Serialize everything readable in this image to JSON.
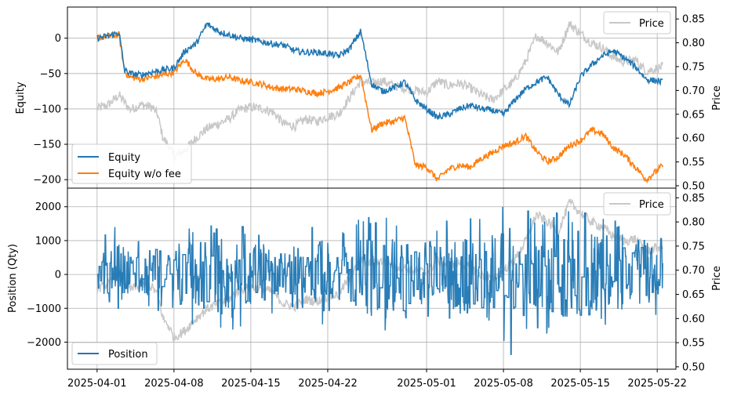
{
  "chart_data": [
    {
      "type": "line",
      "ylabel": "Equity",
      "y2label": "Price",
      "ylim": [
        -212,
        44
      ],
      "y2lim": [
        0.495,
        0.875
      ],
      "yticks": [
        0,
        -50,
        -100,
        -150,
        -200
      ],
      "yticklabels": [
        "0",
        "−50",
        "−100",
        "−150",
        "−200"
      ],
      "y2ticks": [
        0.85,
        0.8,
        0.75,
        0.7,
        0.65,
        0.6,
        0.55,
        0.5
      ],
      "y2ticklabels": [
        "0.85",
        "0.80",
        "0.75",
        "0.70",
        "0.65",
        "0.60",
        "0.55",
        "0.50"
      ],
      "grid": true,
      "legend": [
        {
          "position": "lower-left",
          "entries": [
            "Equity",
            "Equity w/o fee"
          ]
        },
        {
          "position": "upper-right",
          "entries": [
            "Price"
          ]
        }
      ],
      "colors": {
        "equity": "#1f77b4",
        "equity_no_fee": "#ff7f0e",
        "price": "#c8c8c8"
      },
      "series": [
        {
          "name": "Equity",
          "axis": "left",
          "x": [
            0,
            1,
            2,
            2.5,
            3,
            4,
            5,
            6,
            7,
            8,
            9,
            10,
            11,
            12,
            13,
            14,
            15,
            16,
            17,
            18,
            19,
            20,
            21,
            22,
            23,
            24,
            25,
            26,
            27,
            28,
            29,
            30,
            31,
            32,
            33,
            34,
            35,
            36,
            37,
            38,
            39,
            40,
            41,
            42,
            43,
            44,
            45,
            46,
            47,
            48,
            49,
            50,
            51.5
          ],
          "y": [
            0,
            3,
            8,
            -45,
            -50,
            -52,
            -48,
            -45,
            -42,
            -18,
            -8,
            20,
            10,
            5,
            0,
            -2,
            -5,
            -8,
            -10,
            -18,
            -20,
            -20,
            -22,
            -25,
            -15,
            10,
            -65,
            -75,
            -70,
            -62,
            -88,
            -100,
            -112,
            -108,
            -100,
            -95,
            -100,
            -102,
            -108,
            -88,
            -72,
            -62,
            -55,
            -80,
            -95,
            -55,
            -38,
            -25,
            -18,
            -28,
            -40,
            -58,
            -62
          ]
        },
        {
          "name": "Equity w/o fee",
          "axis": "left",
          "x": [
            0,
            1,
            2,
            2.5,
            3,
            4,
            5,
            6,
            7,
            8,
            9,
            10,
            11,
            12,
            13,
            14,
            15,
            16,
            17,
            18,
            19,
            20,
            21,
            22,
            23,
            24,
            25,
            26,
            27,
            28,
            29,
            30,
            31,
            32,
            33,
            34,
            35,
            36,
            37,
            38,
            39,
            40,
            41,
            42,
            43,
            44,
            45,
            46,
            47,
            48,
            49,
            50,
            51.5
          ],
          "y": [
            0,
            3,
            5,
            -48,
            -55,
            -58,
            -55,
            -52,
            -48,
            -30,
            -50,
            -58,
            -58,
            -55,
            -60,
            -62,
            -65,
            -70,
            -72,
            -72,
            -75,
            -78,
            -75,
            -70,
            -62,
            -52,
            -130,
            -120,
            -118,
            -112,
            -180,
            -182,
            -200,
            -185,
            -180,
            -182,
            -170,
            -162,
            -152,
            -148,
            -138,
            -160,
            -175,
            -168,
            -152,
            -145,
            -130,
            -135,
            -155,
            -165,
            -182,
            -200,
            -180
          ]
        },
        {
          "name": "Price",
          "axis": "right",
          "x": [
            0,
            1,
            2,
            3,
            4,
            5,
            5.5,
            6,
            6.5,
            7,
            8,
            9,
            10,
            11,
            12,
            13,
            14,
            15,
            16,
            17,
            18,
            19,
            20,
            21,
            22,
            23,
            24,
            25,
            26,
            27,
            28,
            29,
            30,
            31,
            32,
            33,
            34,
            35,
            36,
            37,
            38,
            39,
            40,
            41,
            42,
            43,
            44,
            45,
            46,
            47,
            48,
            49,
            50,
            51.5
          ],
          "y": [
            0.662,
            0.67,
            0.69,
            0.66,
            0.67,
            0.665,
            0.65,
            0.6,
            0.585,
            0.56,
            0.575,
            0.6,
            0.62,
            0.63,
            0.64,
            0.66,
            0.665,
            0.662,
            0.655,
            0.63,
            0.625,
            0.64,
            0.635,
            0.645,
            0.65,
            0.685,
            0.72,
            0.715,
            0.72,
            0.71,
            0.705,
            0.7,
            0.695,
            0.72,
            0.71,
            0.715,
            0.705,
            0.69,
            0.68,
            0.7,
            0.72,
            0.76,
            0.815,
            0.8,
            0.78,
            0.84,
            0.82,
            0.8,
            0.79,
            0.77,
            0.76,
            0.765,
            0.74,
            0.75
          ]
        }
      ]
    },
    {
      "type": "line",
      "ylabel": "Position (Qty)",
      "y2label": "Price",
      "xlim": [
        -2.7,
        52.7
      ],
      "ylim": [
        -2800,
        2550
      ],
      "y2lim": [
        0.495,
        0.87
      ],
      "yticks": [
        2000,
        1000,
        0,
        -1000,
        -2000
      ],
      "yticklabels": [
        "2000",
        "1000",
        "0",
        "−1000",
        "−2000"
      ],
      "y2ticks": [
        0.85,
        0.8,
        0.75,
        0.7,
        0.65,
        0.6,
        0.55,
        0.5
      ],
      "y2ticklabels": [
        "0.85",
        "0.80",
        "0.75",
        "0.70",
        "0.65",
        "0.60",
        "0.55",
        "0.50"
      ],
      "xticks": [
        0,
        7,
        14,
        21,
        30,
        37,
        44,
        51
      ],
      "xticklabels": [
        "2025-04-01",
        "2025-04-08",
        "2025-04-15",
        "2025-04-22",
        "2025-05-01",
        "2025-05-08",
        "2025-05-15",
        "2025-05-22"
      ],
      "grid": true,
      "legend": [
        {
          "position": "lower-left",
          "entries": [
            "Position"
          ]
        },
        {
          "position": "upper-right",
          "entries": [
            "Price"
          ]
        }
      ],
      "colors": {
        "position": "#1f77b4",
        "price": "#c8c8c8"
      },
      "series": [
        {
          "name": "Position",
          "axis": "left",
          "x_range": [
            0,
            51.5
          ],
          "y_range_observed": [
            -2600,
            2400
          ],
          "y_amplitude_by_day": [
            [
              0,
              900
            ],
            [
              1,
              1900
            ],
            [
              3,
              1200
            ],
            [
              5,
              900
            ],
            [
              7,
              1700
            ],
            [
              8,
              1500
            ],
            [
              10,
              1800
            ],
            [
              11,
              1900
            ],
            [
              12,
              1700
            ],
            [
              14,
              1600
            ],
            [
              16,
              1200
            ],
            [
              18,
              1000
            ],
            [
              20,
              1500
            ],
            [
              21,
              2000
            ],
            [
              22,
              1500
            ],
            [
              24,
              1700
            ],
            [
              26,
              1800
            ],
            [
              28,
              1800
            ],
            [
              30,
              1300
            ],
            [
              32,
              1700
            ],
            [
              34,
              1800
            ],
            [
              36,
              2300
            ],
            [
              38,
              2400
            ],
            [
              40,
              1600
            ],
            [
              42,
              2000
            ],
            [
              44,
              2300
            ],
            [
              46,
              1800
            ],
            [
              48,
              1800
            ],
            [
              50,
              1700
            ],
            [
              51.5,
              1200
            ]
          ]
        },
        {
          "name": "Price",
          "axis": "right",
          "x": [
            0,
            1,
            2,
            3,
            4,
            5,
            5.5,
            6,
            6.5,
            7,
            8,
            9,
            10,
            11,
            12,
            13,
            14,
            15,
            16,
            17,
            18,
            19,
            20,
            21,
            22,
            23,
            24,
            25,
            26,
            27,
            28,
            29,
            30,
            31,
            32,
            33,
            34,
            35,
            36,
            37,
            38,
            39,
            40,
            41,
            42,
            43,
            44,
            45,
            46,
            47,
            48,
            49,
            50,
            51.5
          ],
          "y": [
            0.662,
            0.67,
            0.69,
            0.66,
            0.67,
            0.665,
            0.65,
            0.6,
            0.585,
            0.56,
            0.575,
            0.6,
            0.62,
            0.63,
            0.64,
            0.66,
            0.665,
            0.662,
            0.655,
            0.63,
            0.625,
            0.64,
            0.635,
            0.645,
            0.65,
            0.685,
            0.72,
            0.715,
            0.72,
            0.71,
            0.705,
            0.7,
            0.695,
            0.72,
            0.71,
            0.715,
            0.705,
            0.69,
            0.68,
            0.7,
            0.72,
            0.76,
            0.815,
            0.8,
            0.78,
            0.84,
            0.82,
            0.8,
            0.79,
            0.77,
            0.76,
            0.765,
            0.74,
            0.75
          ]
        }
      ]
    }
  ]
}
